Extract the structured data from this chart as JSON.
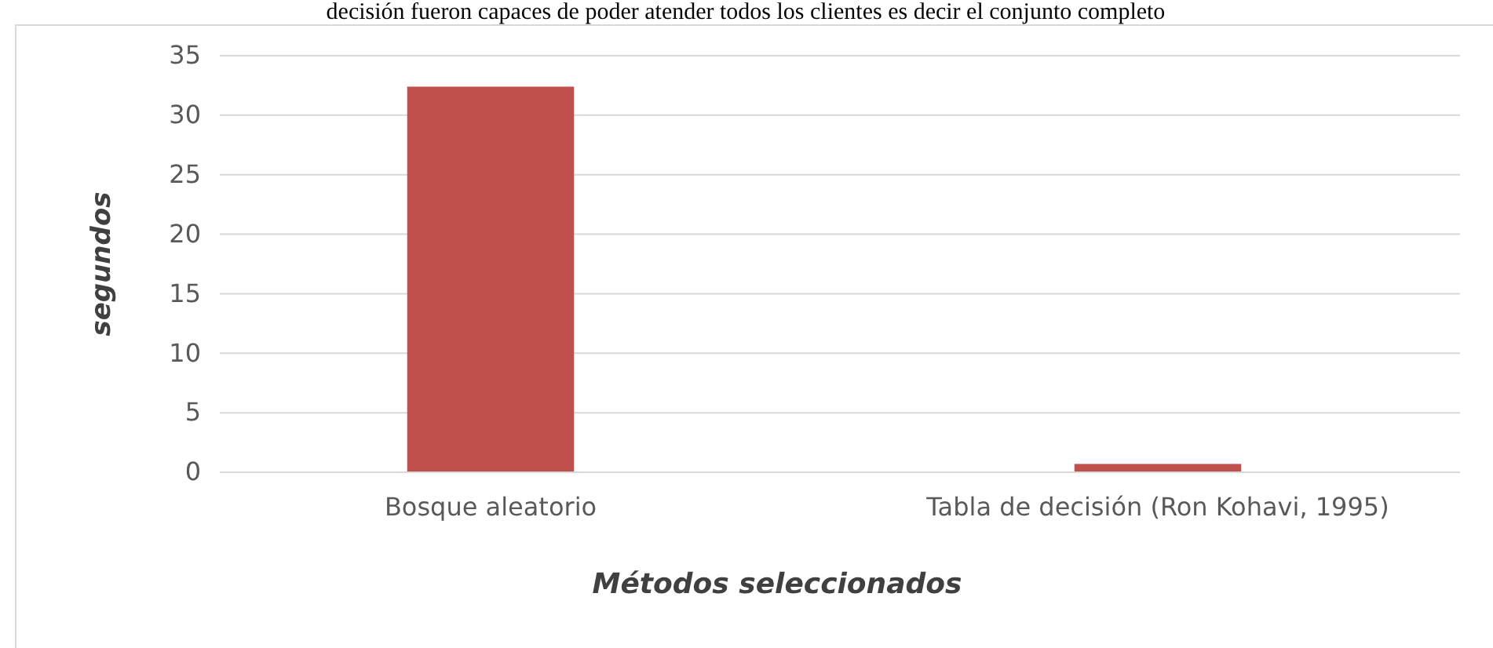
{
  "chart_data": {
    "type": "bar",
    "annotations": [
      "decisión fueron capaces de poder atender todos los clientes es decir el conjunto completo"
    ],
    "xlabel": "Métodos seleccionados",
    "ylabel": "segundos",
    "categories": [
      "Bosque aleatorio",
      "Tabla de decisión (Ron Kohavi, 1995)"
    ],
    "values": [
      32.4,
      0.7
    ],
    "color": "#c0504d",
    "ylim": [
      0,
      35
    ],
    "yticks": [
      0,
      5,
      10,
      15,
      20,
      25,
      30,
      35
    ],
    "grid": "y"
  }
}
